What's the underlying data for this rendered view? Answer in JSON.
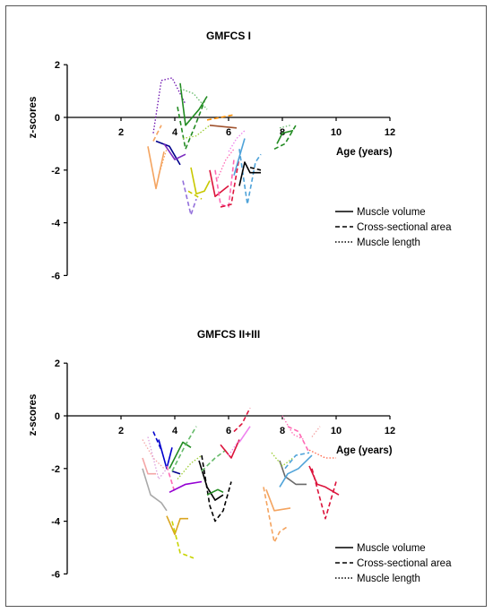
{
  "chart_data": [
    {
      "type": "line",
      "title": "GMFCS I",
      "xlabel": "Age (years)",
      "ylabel": "z-scores",
      "xlim": [
        0,
        12
      ],
      "ylim": [
        -6,
        2
      ],
      "xticks": [
        "2",
        "4",
        "6",
        "8",
        "10",
        "12"
      ],
      "yticks": [
        "2",
        "0",
        "-2",
        "-4",
        "-6"
      ],
      "legend_position": "bottom-right",
      "legend": [
        {
          "label": "Muscle volume",
          "style": "solid"
        },
        {
          "label": "Cross-sectional area",
          "style": "dashed"
        },
        {
          "label": "Muscle length",
          "style": "dotted"
        }
      ],
      "series": [
        {
          "color": "#f4a460",
          "style": "solid",
          "x": [
            3.0,
            3.3,
            3.6
          ],
          "y": [
            -1.1,
            -2.7,
            -1.3
          ]
        },
        {
          "color": "#f4a460",
          "style": "dashed",
          "x": [
            3.2,
            3.5
          ],
          "y": [
            -0.9,
            -0.3
          ]
        },
        {
          "color": "#f4a460",
          "style": "dotted",
          "x": [
            3.4,
            3.7
          ],
          "y": [
            -2.2,
            -1.2
          ]
        },
        {
          "color": "#00008b",
          "style": "solid",
          "x": [
            3.3,
            3.8,
            4.2
          ],
          "y": [
            -0.9,
            -1.1,
            -1.8
          ]
        },
        {
          "color": "#6a0dad",
          "style": "dotted",
          "x": [
            3.2,
            3.5,
            3.9,
            4.4
          ],
          "y": [
            -0.6,
            1.4,
            1.5,
            0.5
          ]
        },
        {
          "color": "#7b2cbf",
          "style": "solid",
          "x": [
            3.6,
            4.0,
            4.4
          ],
          "y": [
            -1.0,
            -1.6,
            -1.4
          ]
        },
        {
          "color": "#228b22",
          "style": "solid",
          "x": [
            4.2,
            4.4,
            4.9,
            5.2
          ],
          "y": [
            1.3,
            -0.3,
            0.3,
            0.8
          ]
        },
        {
          "color": "#228b22",
          "style": "dashed",
          "x": [
            4.1,
            4.4,
            4.8,
            5.1
          ],
          "y": [
            0.4,
            -1.2,
            -0.2,
            0.6
          ]
        },
        {
          "color": "#66bb6a",
          "style": "dotted",
          "x": [
            4.2,
            4.7,
            5.2
          ],
          "y": [
            1.1,
            0.9,
            0.3
          ]
        },
        {
          "color": "#9acd32",
          "style": "dotted",
          "x": [
            4.3,
            4.8,
            5.3
          ],
          "y": [
            -0.8,
            -0.7,
            -0.3
          ]
        },
        {
          "color": "#a0522d",
          "style": "solid",
          "x": [
            5.3,
            6.3
          ],
          "y": [
            -0.3,
            -0.4
          ]
        },
        {
          "color": "#ff8c00",
          "style": "dashed",
          "x": [
            5.2,
            6.2
          ],
          "y": [
            -0.1,
            0.1
          ]
        },
        {
          "color": "#c8c800",
          "style": "solid",
          "x": [
            4.6,
            4.8,
            5.1,
            5.3
          ],
          "y": [
            -1.9,
            -2.9,
            -2.8,
            -2.4
          ]
        },
        {
          "color": "#c8c800",
          "style": "dashed",
          "x": [
            4.5,
            5.0
          ],
          "y": [
            -2.8,
            -3.1
          ]
        },
        {
          "color": "#9370db",
          "style": "dashed",
          "x": [
            4.3,
            4.6,
            4.8
          ],
          "y": [
            -2.4,
            -3.7,
            -3.1
          ]
        },
        {
          "color": "#dc143c",
          "style": "solid",
          "x": [
            5.3,
            5.5,
            6.0
          ],
          "y": [
            -2.0,
            -3.0,
            -2.6
          ]
        },
        {
          "color": "#ff69b4",
          "style": "dashed",
          "x": [
            5.5,
            5.7,
            6.0,
            6.2
          ],
          "y": [
            -2.0,
            -3.3,
            -3.4,
            -1.6
          ]
        },
        {
          "color": "#ff69b4",
          "style": "dotted",
          "x": [
            5.6,
            5.9,
            6.2
          ],
          "y": [
            -2.3,
            -1.6,
            -1.2
          ]
        },
        {
          "color": "#dc143c",
          "style": "dashed",
          "x": [
            5.7,
            6.1,
            6.4
          ],
          "y": [
            -3.4,
            -3.3,
            -1.5
          ]
        },
        {
          "color": "#ee82ee",
          "style": "dotted",
          "x": [
            6.0,
            6.3,
            6.6
          ],
          "y": [
            -1.3,
            -0.8,
            -0.5
          ]
        },
        {
          "color": "#4fa3d9",
          "style": "solid",
          "x": [
            6.2,
            6.6
          ],
          "y": [
            -2.2,
            -0.8
          ]
        },
        {
          "color": "#4fa3d9",
          "style": "dashed",
          "x": [
            6.4,
            6.7,
            7.0,
            7.2
          ],
          "y": [
            -1.2,
            -3.3,
            -1.7,
            -1.4
          ]
        },
        {
          "color": "#000000",
          "style": "solid",
          "x": [
            6.4,
            6.6,
            6.8,
            7.2
          ],
          "y": [
            -2.6,
            -1.7,
            -2.1,
            -2.1
          ]
        },
        {
          "color": "#000000",
          "style": "dashed",
          "x": [
            6.8,
            7.2
          ],
          "y": [
            -1.9,
            -2.0
          ]
        },
        {
          "color": "#228b22",
          "style": "solid",
          "x": [
            7.8,
            8.0,
            8.4
          ],
          "y": [
            -1.0,
            -0.6,
            -0.5
          ]
        },
        {
          "color": "#228b22",
          "style": "dashed",
          "x": [
            7.7,
            8.1,
            8.5
          ],
          "y": [
            -1.2,
            -1.0,
            -0.3
          ]
        },
        {
          "color": "#66bb6a",
          "style": "dotted",
          "x": [
            7.9,
            8.3
          ],
          "y": [
            -0.4,
            -0.3
          ]
        }
      ]
    },
    {
      "type": "line",
      "title": "GMFCS II+III",
      "xlabel": "Age (years)",
      "ylabel": "z-scores",
      "xlim": [
        0,
        12
      ],
      "ylim": [
        -6,
        2
      ],
      "xticks": [
        "2",
        "4",
        "6",
        "8",
        "10",
        "12"
      ],
      "yticks": [
        "2",
        "0",
        "-2",
        "-4",
        "-6"
      ],
      "legend_position": "bottom-right",
      "legend": [
        {
          "label": "Muscle volume",
          "style": "solid"
        },
        {
          "label": "Cross-sectional area",
          "style": "dashed"
        },
        {
          "label": "Muscle length",
          "style": "dotted"
        }
      ],
      "series": [
        {
          "color": "#f4a6a6",
          "style": "solid",
          "x": [
            2.8,
            3.0,
            3.3
          ],
          "y": [
            -1.6,
            -2.2,
            -2.2
          ]
        },
        {
          "color": "#f4a6a6",
          "style": "dotted",
          "x": [
            2.8,
            3.2,
            3.6
          ],
          "y": [
            -0.9,
            -1.6,
            -2.0
          ]
        },
        {
          "color": "#a9a9a9",
          "style": "solid",
          "x": [
            2.8,
            3.1,
            3.5,
            3.7
          ],
          "y": [
            -2.0,
            -3.0,
            -3.3,
            -3.6
          ]
        },
        {
          "color": "#dda0dd",
          "style": "dotted",
          "x": [
            3.0,
            3.4,
            3.7
          ],
          "y": [
            -0.8,
            -2.4,
            -2.0
          ]
        },
        {
          "color": "#0000cd",
          "style": "solid",
          "x": [
            3.4,
            3.7,
            3.9
          ],
          "y": [
            -0.9,
            -2.0,
            -1.2
          ]
        },
        {
          "color": "#0000cd",
          "style": "dashed",
          "x": [
            3.2,
            3.5
          ],
          "y": [
            -0.6,
            -1.3
          ]
        },
        {
          "color": "#228b22",
          "style": "solid",
          "x": [
            3.8,
            4.0,
            4.3,
            4.6
          ],
          "y": [
            -2.0,
            -1.6,
            -1.0,
            -1.2
          ]
        },
        {
          "color": "#00008b",
          "style": "solid",
          "x": [
            3.9,
            4.2
          ],
          "y": [
            -2.1,
            -2.2
          ]
        },
        {
          "color": "#ff69b4",
          "style": "dashed",
          "x": [
            3.7,
            4.0
          ],
          "y": [
            -1.9,
            -2.9
          ]
        },
        {
          "color": "#66bb6a",
          "style": "dashed",
          "x": [
            3.9,
            4.4,
            4.8
          ],
          "y": [
            -2.1,
            -1.1,
            -0.4
          ]
        },
        {
          "color": "#9acd32",
          "style": "dotted",
          "x": [
            4.1,
            4.6,
            5.0
          ],
          "y": [
            -2.4,
            -1.8,
            -1.5
          ]
        },
        {
          "color": "#9400d3",
          "style": "solid",
          "x": [
            3.8,
            4.4,
            5.0
          ],
          "y": [
            -2.9,
            -2.6,
            -2.5
          ]
        },
        {
          "color": "#daa520",
          "style": "solid",
          "x": [
            3.7,
            4.0,
            4.2,
            4.5
          ],
          "y": [
            -3.8,
            -4.5,
            -3.9,
            -3.9
          ]
        },
        {
          "color": "#c8d400",
          "style": "dashed",
          "x": [
            3.9,
            4.2,
            4.7
          ],
          "y": [
            -4.0,
            -5.2,
            -5.4
          ]
        },
        {
          "color": "#000000",
          "style": "solid",
          "x": [
            4.9,
            5.2,
            5.5,
            5.8
          ],
          "y": [
            -1.7,
            -2.7,
            -3.2,
            -3.0
          ]
        },
        {
          "color": "#000000",
          "style": "dashed",
          "x": [
            5.0,
            5.3,
            5.5,
            5.8,
            6.1
          ],
          "y": [
            -1.5,
            -3.4,
            -4.0,
            -3.6,
            -2.5
          ]
        },
        {
          "color": "#228b22",
          "style": "solid",
          "x": [
            5.2,
            5.6,
            5.8
          ],
          "y": [
            -3.0,
            -2.8,
            -2.9
          ]
        },
        {
          "color": "#66bb6a",
          "style": "dashed",
          "x": [
            5.0,
            5.5,
            5.9
          ],
          "y": [
            -2.1,
            -1.6,
            -1.3
          ]
        },
        {
          "color": "#dc143c",
          "style": "solid",
          "x": [
            5.7,
            6.1,
            6.4
          ],
          "y": [
            -1.1,
            -1.6,
            -0.9
          ]
        },
        {
          "color": "#ee82ee",
          "style": "solid",
          "x": [
            6.4,
            6.8
          ],
          "y": [
            -1.0,
            -0.4
          ]
        },
        {
          "color": "#dc143c",
          "style": "dashed",
          "x": [
            6.2,
            6.5,
            6.8
          ],
          "y": [
            -0.6,
            -0.3,
            0.3
          ]
        },
        {
          "color": "#ee82ee",
          "style": "dotted",
          "x": [
            6.0,
            6.4
          ],
          "y": [
            -1.5,
            -0.9
          ]
        },
        {
          "color": "#f4a460",
          "style": "solid",
          "x": [
            7.4,
            7.7,
            8.3
          ],
          "y": [
            -2.8,
            -3.6,
            -3.5
          ]
        },
        {
          "color": "#f4a460",
          "style": "dashed",
          "x": [
            7.3,
            7.7,
            7.9,
            8.2
          ],
          "y": [
            -2.7,
            -4.8,
            -4.4,
            -4.2
          ]
        },
        {
          "color": "#696969",
          "style": "solid",
          "x": [
            7.9,
            8.1,
            8.5,
            8.9
          ],
          "y": [
            -1.7,
            -2.3,
            -2.6,
            -2.6
          ]
        },
        {
          "color": "#4fa3d9",
          "style": "solid",
          "x": [
            7.9,
            8.2,
            8.6,
            9.1
          ],
          "y": [
            -2.7,
            -2.2,
            -2.0,
            -1.5
          ]
        },
        {
          "color": "#4fa3d9",
          "style": "dashed",
          "x": [
            8.1,
            8.5,
            9.0
          ],
          "y": [
            -2.0,
            -1.5,
            -1.4
          ]
        },
        {
          "color": "#9acd32",
          "style": "dotted",
          "x": [
            7.6,
            8.0,
            8.4
          ],
          "y": [
            -1.4,
            -1.9,
            -1.6
          ]
        },
        {
          "color": "#ff69b4",
          "style": "dotted",
          "x": [
            8.0,
            8.4,
            8.8
          ],
          "y": [
            0.0,
            -0.7,
            -0.9
          ]
        },
        {
          "color": "#ff69b4",
          "style": "dashed",
          "x": [
            8.2,
            8.6,
            9.0
          ],
          "y": [
            -0.4,
            -0.6,
            -1.4
          ]
        },
        {
          "color": "#dc143c",
          "style": "solid",
          "x": [
            9.0,
            9.3,
            9.6,
            10.1
          ],
          "y": [
            -1.9,
            -2.6,
            -2.7,
            -3.0
          ]
        },
        {
          "color": "#dc143c",
          "style": "dashed",
          "x": [
            9.1,
            9.6,
            10.0
          ],
          "y": [
            -2.0,
            -3.9,
            -2.5
          ]
        },
        {
          "color": "#ff6347",
          "style": "dotted",
          "x": [
            9.0,
            9.6,
            10.0
          ],
          "y": [
            -1.3,
            -1.6,
            -1.6
          ]
        },
        {
          "color": "#f4a6a6",
          "style": "dotted",
          "x": [
            9.1,
            9.4
          ],
          "y": [
            -0.8,
            -0.4
          ]
        }
      ]
    }
  ]
}
